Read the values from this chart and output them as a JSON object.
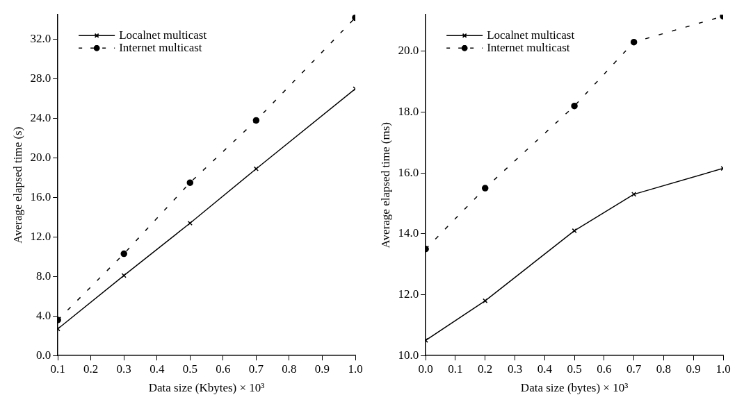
{
  "chart_data": [
    {
      "type": "line",
      "xlabel": "Data size (Kbytes) × 10³",
      "ylabel": "Average elapsed time (s)",
      "x": [
        0.1,
        0.3,
        0.5,
        0.7,
        1.0
      ],
      "xlim": [
        0.1,
        1.0
      ],
      "xticks": [
        {
          "value": 0.1,
          "label": "0.1"
        },
        {
          "value": 0.2,
          "label": "0.2"
        },
        {
          "value": 0.3,
          "label": "0.3"
        },
        {
          "value": 0.4,
          "label": "0.4"
        },
        {
          "value": 0.5,
          "label": "0.5"
        },
        {
          "value": 0.6,
          "label": "0.6"
        },
        {
          "value": 0.7,
          "label": "0.7"
        },
        {
          "value": 0.8,
          "label": "0.8"
        },
        {
          "value": 0.9,
          "label": "0.9"
        },
        {
          "value": 1.0,
          "label": "1.0"
        }
      ],
      "ylim": [
        0,
        34.5
      ],
      "yticks": [
        {
          "value": 0,
          "label": "0.0"
        },
        {
          "value": 4,
          "label": "4.0"
        },
        {
          "value": 8,
          "label": "8.0"
        },
        {
          "value": 12,
          "label": "12.0"
        },
        {
          "value": 16,
          "label": "16.0"
        },
        {
          "value": 20,
          "label": "20.0"
        },
        {
          "value": 24,
          "label": "24.0"
        },
        {
          "value": 28,
          "label": "28.0"
        },
        {
          "value": 32,
          "label": "32.0"
        }
      ],
      "grid": false,
      "legend": "top left",
      "series": [
        {
          "name": "Localnet multicast",
          "color": "#000000",
          "marker": "cross",
          "line_style": "solid",
          "values": [
            2.7,
            8.1,
            13.4,
            18.9,
            27.0
          ]
        },
        {
          "name": "Internet multicast",
          "color": "#000000",
          "marker": "circle",
          "line_style": "dashed",
          "values": [
            3.6,
            10.3,
            17.5,
            23.8,
            34.2
          ]
        }
      ]
    },
    {
      "type": "line",
      "xlabel": "Data size (bytes) × 10³",
      "ylabel": "Average elapsed time (ms)",
      "x": [
        0.0,
        0.2,
        0.5,
        0.7,
        1.0
      ],
      "xlim": [
        0.0,
        1.0
      ],
      "xticks": [
        {
          "value": 0,
          "label": "0.0"
        },
        {
          "value": 0.1,
          "label": "0.1"
        },
        {
          "value": 0.2,
          "label": "0.2"
        },
        {
          "value": 0.3,
          "label": "0.3"
        },
        {
          "value": 0.4,
          "label": "0.4"
        },
        {
          "value": 0.5,
          "label": "0.5"
        },
        {
          "value": 0.6,
          "label": "0.6"
        },
        {
          "value": 0.7,
          "label": "0.7"
        },
        {
          "value": 0.8,
          "label": "0.8"
        },
        {
          "value": 0.9,
          "label": "0.9"
        },
        {
          "value": 1.0,
          "label": "1.0"
        }
      ],
      "ylim": [
        10,
        21.2
      ],
      "yticks": [
        {
          "value": 10,
          "label": "10.0"
        },
        {
          "value": 12,
          "label": "12.0"
        },
        {
          "value": 14,
          "label": "14.0"
        },
        {
          "value": 16,
          "label": "16.0"
        },
        {
          "value": 18,
          "label": "18.0"
        },
        {
          "value": 20,
          "label": "20.0"
        }
      ],
      "grid": false,
      "legend": "top left",
      "series": [
        {
          "name": "Localnet multicast",
          "color": "#000000",
          "marker": "cross",
          "line_style": "solid",
          "values": [
            10.5,
            11.8,
            14.1,
            15.3,
            16.15
          ]
        },
        {
          "name": "Internet multicast",
          "color": "#000000",
          "marker": "circle",
          "line_style": "dashed",
          "values": [
            13.5,
            15.5,
            18.2,
            20.3,
            21.15
          ]
        }
      ]
    }
  ]
}
